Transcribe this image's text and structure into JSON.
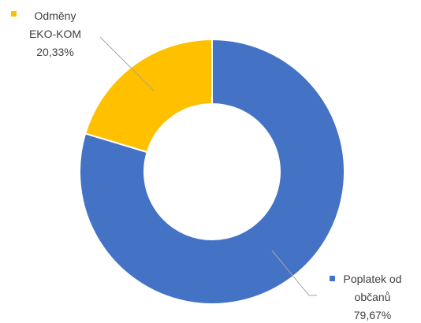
{
  "chart_data": {
    "type": "donut",
    "categories": [
      "Poplatek od občanů",
      "Odměny EKO-KOM"
    ],
    "values": [
      79.67,
      20.33
    ],
    "value_labels": [
      "79,67%",
      "20,33%"
    ],
    "colors": [
      "#4472c4",
      "#ffc000"
    ]
  }
}
